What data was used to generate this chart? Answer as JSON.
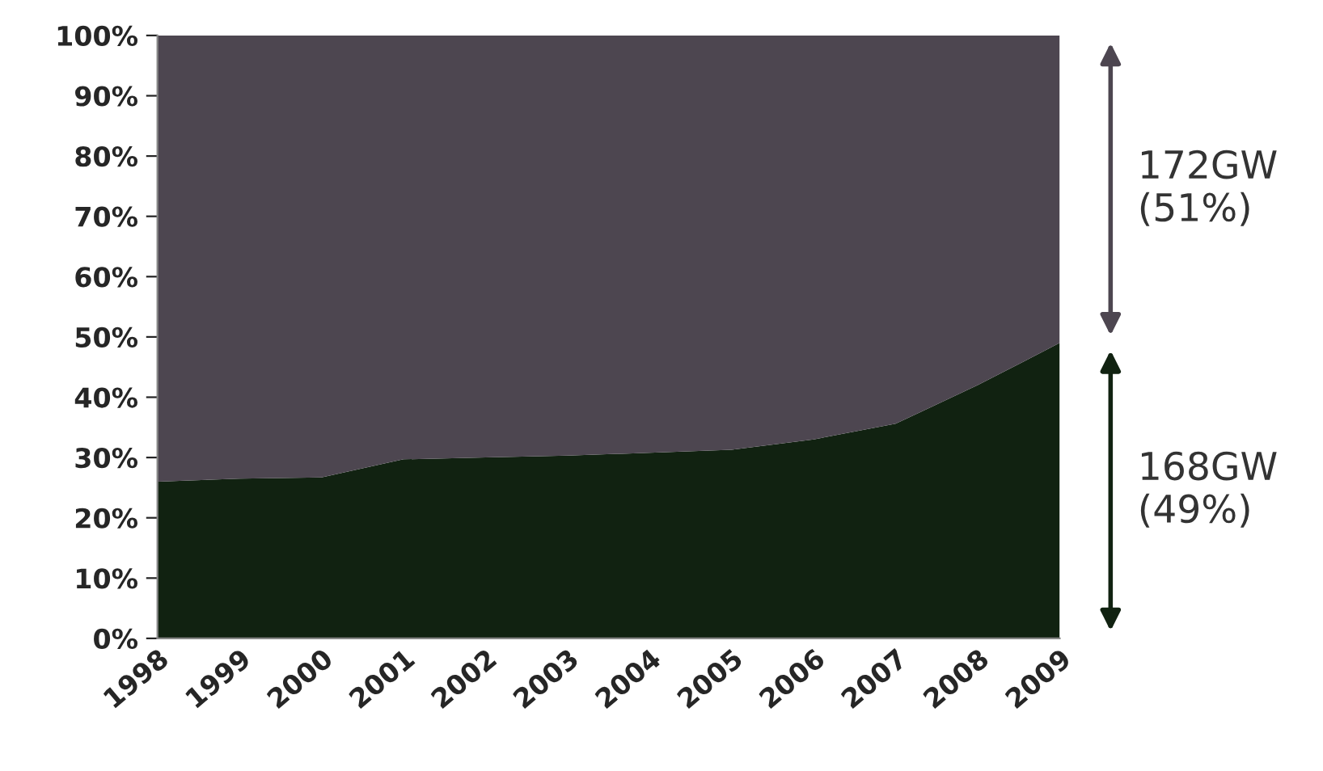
{
  "chart_data": {
    "type": "area",
    "stacked": true,
    "categories": [
      "1998",
      "1999",
      "2000",
      "2001",
      "2002",
      "2003",
      "2004",
      "2005",
      "2006",
      "2007",
      "2008",
      "2009"
    ],
    "series": [
      {
        "color": "#112211",
        "values": [
          26,
          26.5,
          26.7,
          29.7,
          30,
          30.3,
          30.8,
          31.3,
          33,
          35.6,
          42,
          49
        ]
      },
      {
        "color": "#4d4650",
        "values": [
          74,
          73.5,
          73.3,
          70.3,
          70,
          69.7,
          69.2,
          68.7,
          67,
          64.4,
          58,
          51
        ]
      }
    ],
    "ylim": [
      0,
      100
    ],
    "yticks": [
      {
        "value": 0,
        "label": "0%"
      },
      {
        "value": 10,
        "label": "10%"
      },
      {
        "value": 20,
        "label": "20%"
      },
      {
        "value": 30,
        "label": "30%"
      },
      {
        "value": 40,
        "label": "40%"
      },
      {
        "value": 50,
        "label": "50%"
      },
      {
        "value": 60,
        "label": "60%"
      },
      {
        "value": 70,
        "label": "70%"
      },
      {
        "value": 80,
        "label": "80%"
      },
      {
        "value": 90,
        "label": "90%"
      },
      {
        "value": 100,
        "label": "100%"
      }
    ],
    "annotations": [
      "172GW\n(51%)",
      "168GW\n(49%)"
    ],
    "grid": false
  }
}
